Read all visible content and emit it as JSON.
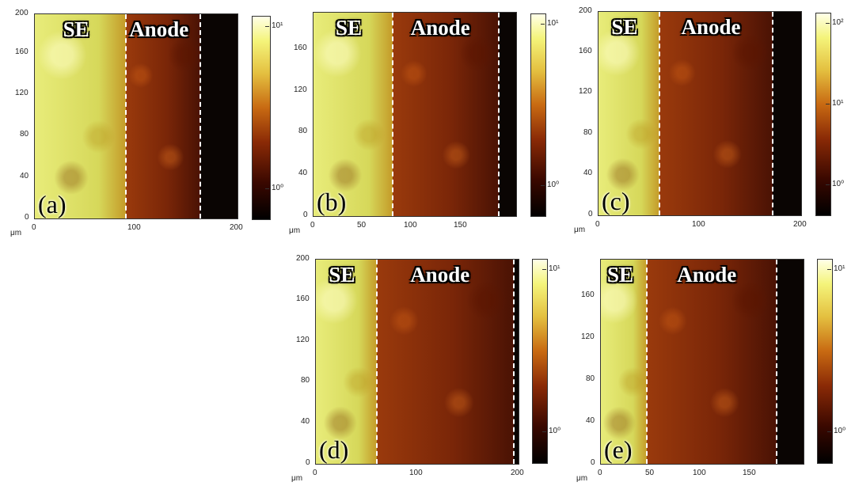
{
  "panels": [
    {
      "id": "a",
      "label": "(a)",
      "se_label": "SE",
      "anode_label": "Anode",
      "x_ticks": [
        "0",
        "100",
        "200"
      ],
      "y_ticks": [
        "0",
        "40",
        "80",
        "120",
        "160",
        "200"
      ],
      "x_unit": "μm",
      "cbar_labels": [
        "10⁰",
        "10¹"
      ],
      "x_range": [
        0,
        200
      ],
      "y_range": [
        0,
        200
      ],
      "se_boundary": 90,
      "dark_start": 163
    },
    {
      "id": "b",
      "label": "(b)",
      "se_label": "SE",
      "anode_label": "Anode",
      "x_ticks": [
        "0",
        "50",
        "100",
        "150"
      ],
      "y_ticks": [
        "0",
        "40",
        "80",
        "120",
        "160"
      ],
      "x_unit": "μm",
      "cbar_labels": [
        "10⁰",
        "10¹"
      ],
      "x_range": [
        0,
        205
      ],
      "y_range": [
        0,
        195
      ],
      "se_boundary": 80,
      "dark_start": 187
    },
    {
      "id": "c",
      "label": "(c)",
      "se_label": "SE",
      "anode_label": "Anode",
      "x_ticks": [
        "0",
        "100",
        "200"
      ],
      "y_ticks": [
        "0",
        "40",
        "80",
        "120",
        "160",
        "200"
      ],
      "x_unit": "μm",
      "cbar_labels": [
        "10⁰",
        "10¹",
        "10²"
      ],
      "x_range": [
        0,
        200
      ],
      "y_range": [
        0,
        200
      ],
      "se_boundary": 60,
      "dark_start": 172
    },
    {
      "id": "d",
      "label": "(d)",
      "se_label": "SE",
      "anode_label": "Anode",
      "x_ticks": [
        "0",
        "100",
        "200"
      ],
      "y_ticks": [
        "0",
        "40",
        "80",
        "120",
        "160",
        "200"
      ],
      "x_unit": "μm",
      "cbar_labels": [
        "10⁰",
        "10¹"
      ],
      "x_range": [
        0,
        200
      ],
      "y_range": [
        0,
        200
      ],
      "se_boundary": 60,
      "dark_start": 195
    },
    {
      "id": "e",
      "label": "(e)",
      "se_label": "SE",
      "anode_label": "Anode",
      "x_ticks": [
        "0",
        "50",
        "100",
        "150"
      ],
      "y_ticks": [
        "0",
        "40",
        "80",
        "120",
        "160"
      ],
      "x_unit": "μm",
      "cbar_labels": [
        "10⁰",
        "10¹"
      ],
      "x_range": [
        0,
        198
      ],
      "y_range": [
        0,
        195
      ],
      "se_boundary": 45,
      "dark_start": 172
    }
  ]
}
